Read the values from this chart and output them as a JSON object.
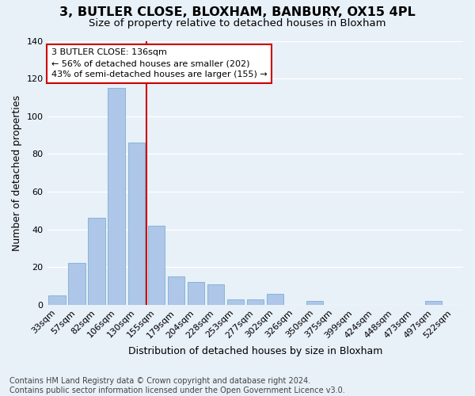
{
  "title": "3, BUTLER CLOSE, BLOXHAM, BANBURY, OX15 4PL",
  "subtitle": "Size of property relative to detached houses in Bloxham",
  "xlabel": "Distribution of detached houses by size in Bloxham",
  "ylabel": "Number of detached properties",
  "footnote1": "Contains HM Land Registry data © Crown copyright and database right 2024.",
  "footnote2": "Contains public sector information licensed under the Open Government Licence v3.0.",
  "bar_labels": [
    "33sqm",
    "57sqm",
    "82sqm",
    "106sqm",
    "130sqm",
    "155sqm",
    "179sqm",
    "204sqm",
    "228sqm",
    "253sqm",
    "277sqm",
    "302sqm",
    "326sqm",
    "350sqm",
    "375sqm",
    "399sqm",
    "424sqm",
    "448sqm",
    "473sqm",
    "497sqm",
    "522sqm"
  ],
  "bar_values": [
    5,
    22,
    46,
    115,
    86,
    42,
    15,
    12,
    11,
    3,
    3,
    6,
    0,
    2,
    0,
    0,
    0,
    0,
    0,
    2,
    0
  ],
  "bar_color": "#aec6e8",
  "bar_edge_color": "#7aafd4",
  "background_color": "#e8f0f8",
  "grid_color": "#ffffff",
  "property_label": "3 BUTLER CLOSE: 136sqm",
  "annotation_line1": "← 56% of detached houses are smaller (202)",
  "annotation_line2": "43% of semi-detached houses are larger (155) →",
  "vline_color": "#cc0000",
  "annotation_box_color": "#cc0000",
  "ylim": [
    0,
    140
  ],
  "title_fontsize": 11.5,
  "subtitle_fontsize": 9.5,
  "axis_label_fontsize": 9,
  "tick_fontsize": 8,
  "annotation_fontsize": 8,
  "footnote_fontsize": 7
}
